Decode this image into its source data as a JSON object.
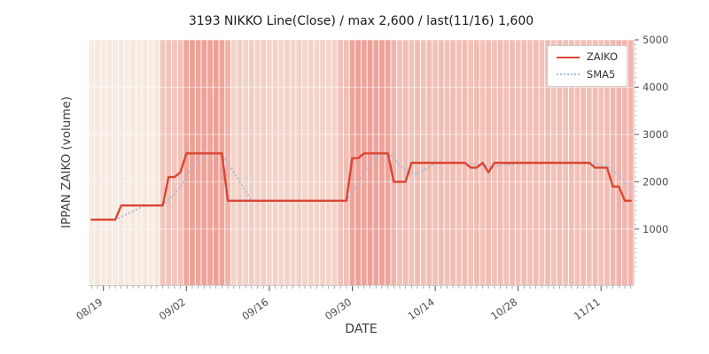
{
  "page": {
    "title": "3193 NIKKO Line(Close) / max 2,600 / last(11/16) 1,600"
  },
  "chart_data": {
    "type": "line",
    "title": "3193 NIKKO Line(Close) / max 2,600 / last(11/16) 1,600",
    "xlabel": "DATE",
    "ylabel": "IPPAN ZAIKO (volume)",
    "ylim": [
      -180,
      5000
    ],
    "yticks": [
      1000,
      2000,
      3000,
      4000,
      5000
    ],
    "xtick_labels": [
      "08/19",
      "09/02",
      "09/16",
      "09/30",
      "10/14",
      "10/28",
      "11/11"
    ],
    "date_start": "08/17",
    "date_end": "11/16",
    "max_value": 2600,
    "last_value": 1600,
    "last_date": "11/16",
    "legend": {
      "position": "upper right",
      "entries": [
        {
          "label": "ZAIKO",
          "style": "solid",
          "color": "#db4632"
        },
        {
          "label": "SMA5",
          "style": "dotted",
          "color": "#a8bdda"
        }
      ]
    },
    "series": [
      {
        "name": "ZAIKO",
        "values": [
          1200,
          1200,
          1200,
          1200,
          1200,
          1500,
          1500,
          1500,
          1500,
          1500,
          1500,
          1500,
          1500,
          2100,
          2100,
          2200,
          2600,
          2600,
          2600,
          2600,
          2600,
          2600,
          2600,
          1600,
          1600,
          1600,
          1600,
          1600,
          1600,
          1600,
          1600,
          1600,
          1600,
          1600,
          1600,
          1600,
          1600,
          1600,
          1600,
          1600,
          1600,
          1600,
          1600,
          1600,
          2500,
          2500,
          2600,
          2600,
          2600,
          2600,
          2600,
          2000,
          2000,
          2000,
          2400,
          2400,
          2400,
          2400,
          2400,
          2400,
          2400,
          2400,
          2400,
          2400,
          2300,
          2300,
          2400,
          2200,
          2400,
          2400,
          2400,
          2400,
          2400,
          2400,
          2400,
          2400,
          2400,
          2400,
          2400,
          2400,
          2400,
          2400,
          2400,
          2400,
          2400,
          2300,
          2300,
          2300,
          1900,
          1900,
          1600,
          1600
        ]
      },
      {
        "name": "SMA5",
        "derived": "5-day moving average of ZAIKO"
      }
    ],
    "background_heat": [
      0.06,
      0.06,
      0.06,
      0.06,
      0.06,
      0.06,
      0.06,
      0.06,
      0.06,
      0.06,
      0.06,
      0.06,
      0.46,
      0.46,
      0.46,
      0.46,
      0.82,
      0.82,
      0.82,
      0.82,
      0.82,
      0.82,
      0.82,
      0.62,
      0.34,
      0.34,
      0.34,
      0.34,
      0.34,
      0.34,
      0.3,
      0.3,
      0.3,
      0.3,
      0.3,
      0.3,
      0.3,
      0.3,
      0.3,
      0.3,
      0.3,
      0.3,
      0.5,
      0.5,
      0.82,
      0.82,
      0.82,
      0.82,
      0.82,
      0.82,
      0.82,
      0.62,
      0.52,
      0.52,
      0.52,
      0.52,
      0.52,
      0.52,
      0.52,
      0.52,
      0.52,
      0.52,
      0.52,
      0.52,
      0.52,
      0.52,
      0.52,
      0.52,
      0.52,
      0.52,
      0.52,
      0.52,
      0.52,
      0.52,
      0.52,
      0.52,
      0.52,
      0.52,
      0.52,
      0.52,
      0.52,
      0.52,
      0.52,
      0.52,
      0.52,
      0.52,
      0.52,
      0.52,
      0.62,
      0.62,
      0.62,
      0.62
    ],
    "heat_colors": {
      "low": "#f7f0e6",
      "high": "#ec9188"
    }
  }
}
